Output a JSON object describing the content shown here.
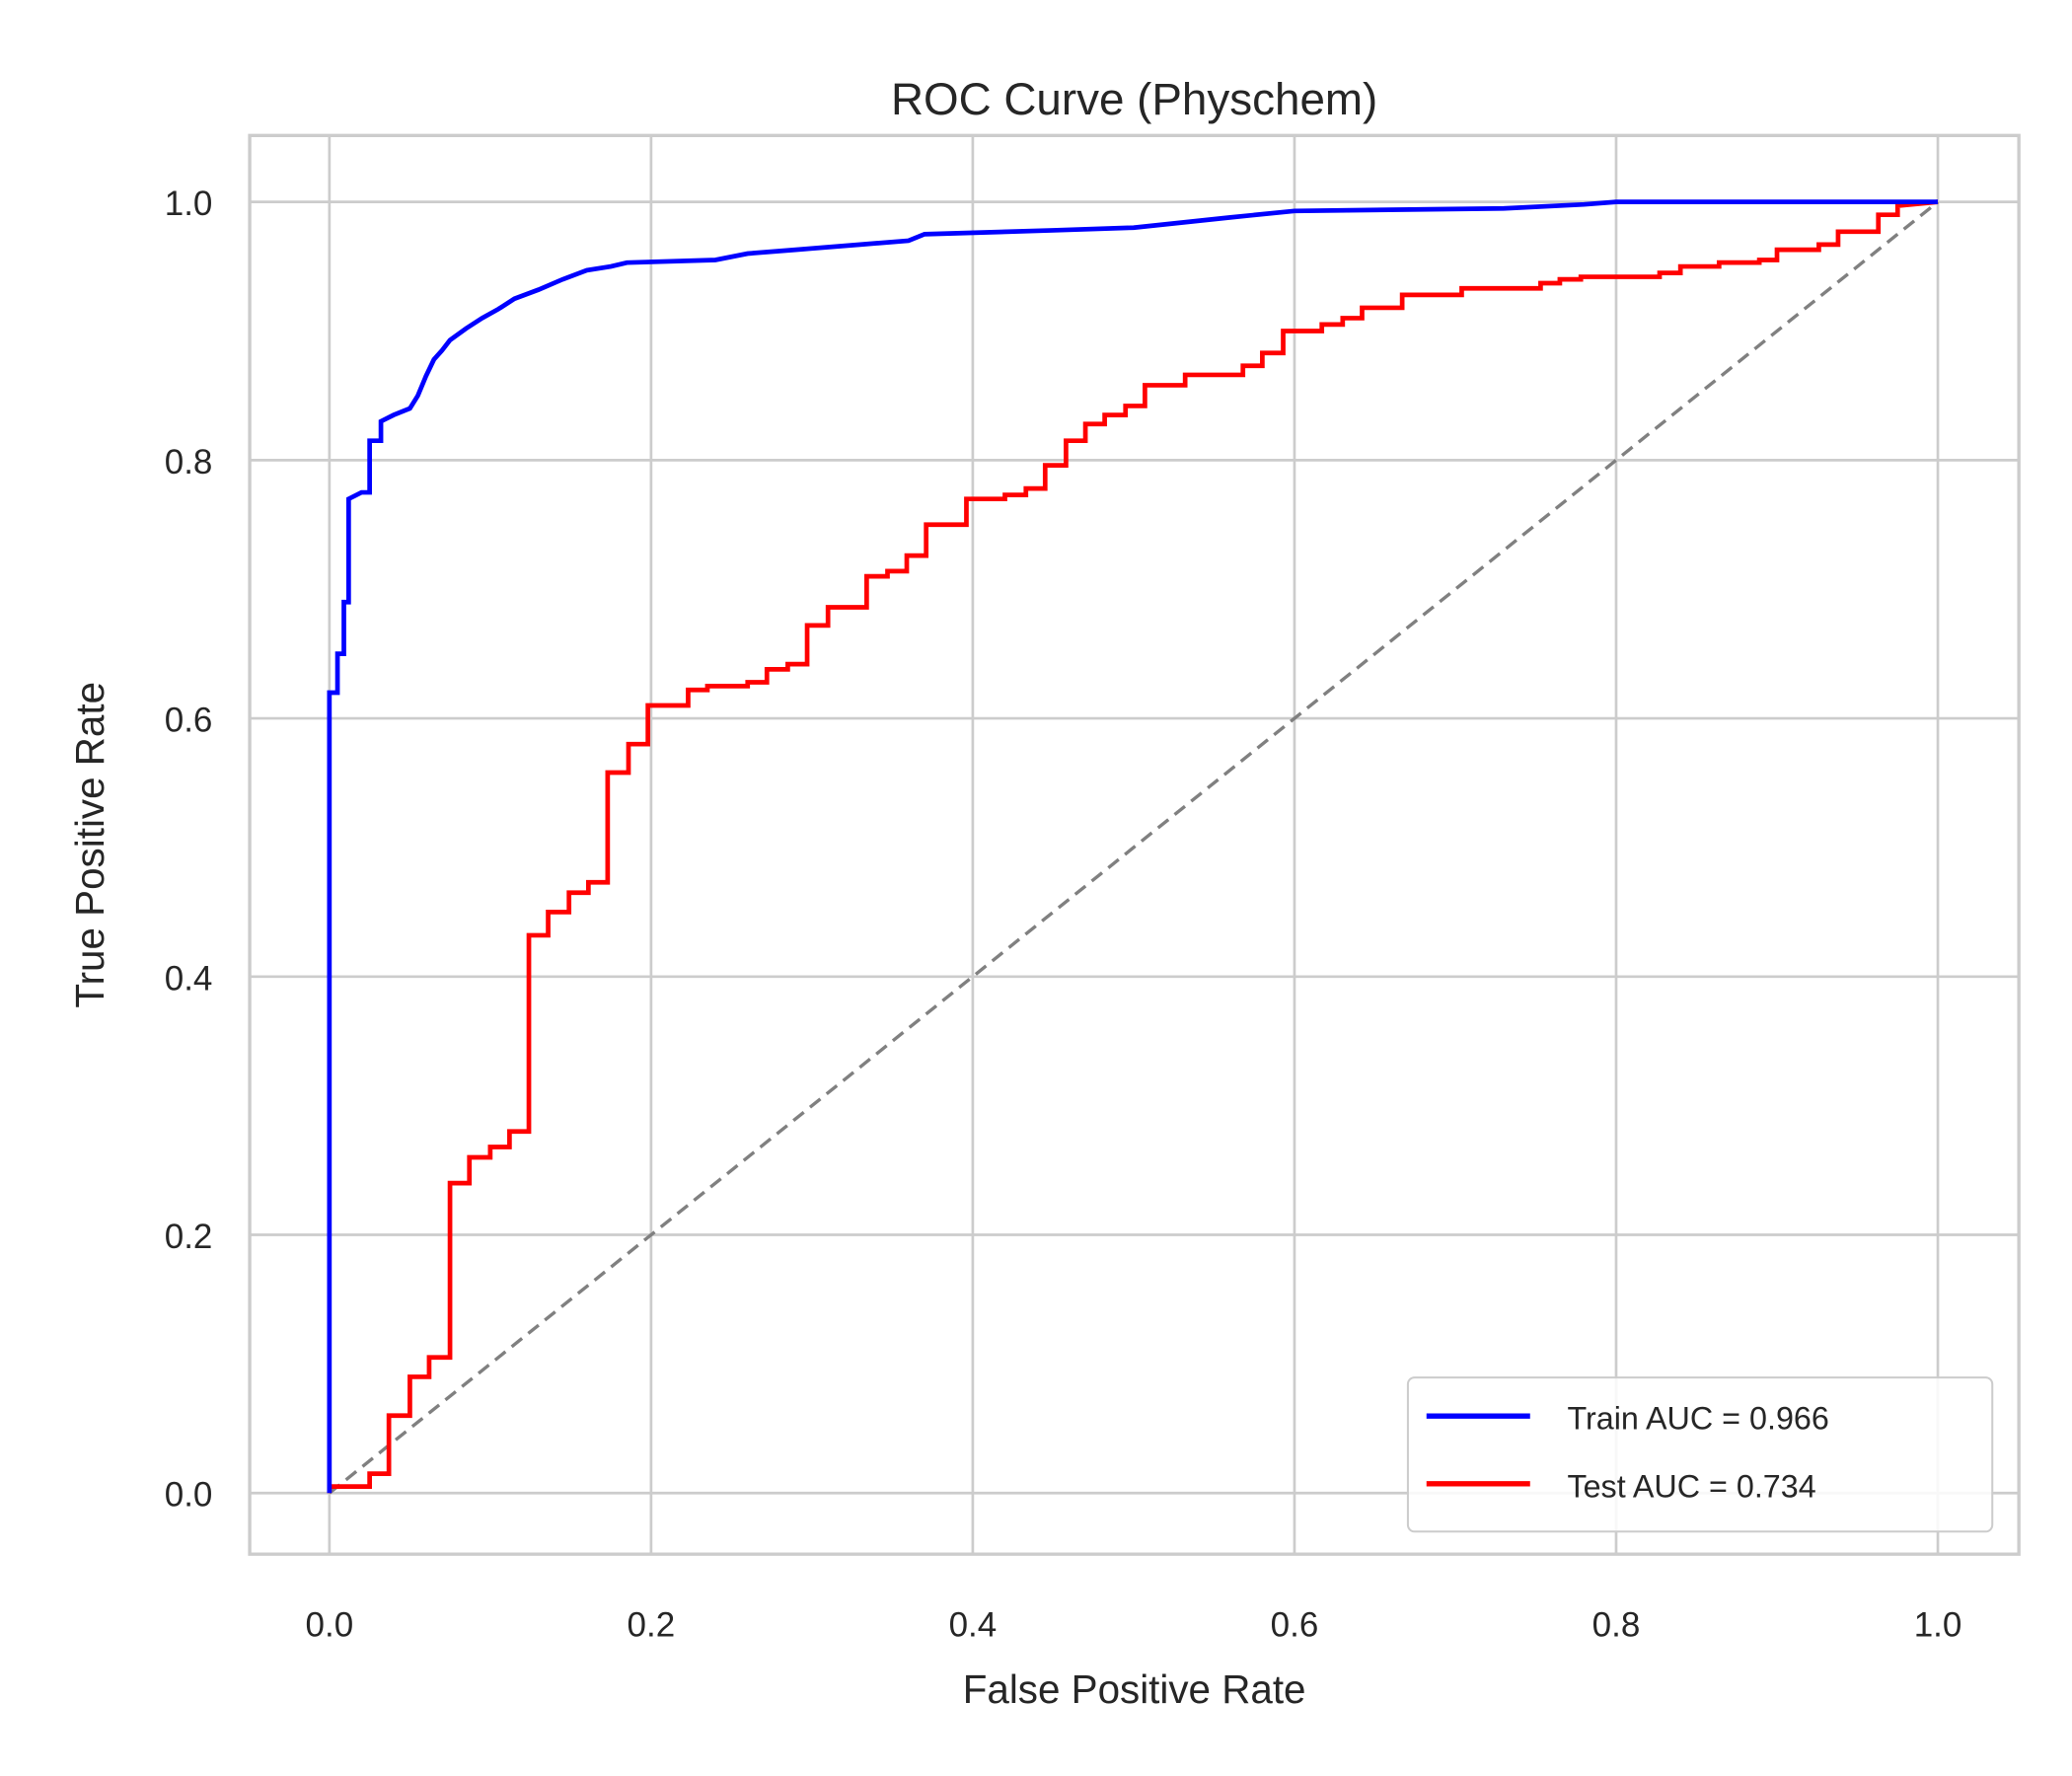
{
  "chart_data": {
    "type": "line",
    "title": "ROC Curve (Physchem)",
    "xlabel": "False Positive Rate",
    "ylabel": "True Positive Rate",
    "xlim": [
      -0.05,
      1.05
    ],
    "ylim": [
      -0.05,
      1.05
    ],
    "xticks": [
      "0.0",
      "0.2",
      "0.4",
      "0.6",
      "0.8",
      "1.0"
    ],
    "yticks": [
      "0.0",
      "0.2",
      "0.4",
      "0.6",
      "0.8",
      "1.0"
    ],
    "grid": true,
    "legend_position": "lower-right",
    "series": [
      {
        "name": "Train AUC = 0.966",
        "color": "#0000ff",
        "x": [
          0,
          0,
          0.005,
          0.005,
          0.009,
          0.009,
          0.012,
          0.012,
          0.02,
          0.025,
          0.025,
          0.032,
          0.032,
          0.04,
          0.05,
          0.055,
          0.06,
          0.065,
          0.07,
          0.075,
          0.085,
          0.095,
          0.105,
          0.115,
          0.13,
          0.145,
          0.16,
          0.175,
          0.185,
          0.24,
          0.26,
          0.29,
          0.33,
          0.36,
          0.37,
          0.45,
          0.5,
          0.56,
          0.6,
          0.73,
          0.78,
          0.8,
          1
        ],
        "y": [
          0,
          0.62,
          0.62,
          0.65,
          0.65,
          0.69,
          0.69,
          0.77,
          0.775,
          0.775,
          0.815,
          0.815,
          0.83,
          0.835,
          0.84,
          0.85,
          0.865,
          0.878,
          0.885,
          0.893,
          0.902,
          0.91,
          0.917,
          0.925,
          0.932,
          0.94,
          0.947,
          0.95,
          0.953,
          0.955,
          0.96,
          0.963,
          0.967,
          0.97,
          0.975,
          0.978,
          0.98,
          0.988,
          0.993,
          0.995,
          0.998,
          1,
          1
        ]
      },
      {
        "name": "Test AUC = 0.734",
        "color": "#ff0000",
        "x": [
          0,
          0,
          0.025,
          0.025,
          0.037,
          0.037,
          0.05,
          0.05,
          0.062,
          0.062,
          0.075,
          0.075,
          0.087,
          0.087,
          0.1,
          0.1,
          0.112,
          0.112,
          0.124,
          0.124,
          0.136,
          0.136,
          0.149,
          0.149,
          0.161,
          0.161,
          0.173,
          0.173,
          0.186,
          0.186,
          0.198,
          0.198,
          0.223,
          0.223,
          0.235,
          0.235,
          0.26,
          0.26,
          0.272,
          0.272,
          0.285,
          0.285,
          0.297,
          0.297,
          0.31,
          0.31,
          0.334,
          0.334,
          0.347,
          0.347,
          0.359,
          0.359,
          0.371,
          0.371,
          0.396,
          0.396,
          0.42,
          0.42,
          0.433,
          0.433,
          0.445,
          0.445,
          0.458,
          0.458,
          0.47,
          0.47,
          0.482,
          0.482,
          0.495,
          0.495,
          0.507,
          0.507,
          0.532,
          0.532,
          0.568,
          0.568,
          0.58,
          0.58,
          0.593,
          0.593,
          0.617,
          0.617,
          0.63,
          0.63,
          0.642,
          0.642,
          0.667,
          0.667,
          0.704,
          0.704,
          0.753,
          0.753,
          0.765,
          0.765,
          0.778,
          0.778,
          0.827,
          0.827,
          0.84,
          0.84,
          0.864,
          0.864,
          0.889,
          0.889,
          0.9,
          0.9,
          0.926,
          0.926,
          0.938,
          0.938,
          0.963,
          0.963,
          0.975,
          0.975,
          1
        ],
        "y": [
          0,
          0.005,
          0.005,
          0.015,
          0.015,
          0.06,
          0.06,
          0.09,
          0.09,
          0.105,
          0.105,
          0.24,
          0.24,
          0.26,
          0.26,
          0.268,
          0.268,
          0.28,
          0.28,
          0.432,
          0.432,
          0.45,
          0.45,
          0.465,
          0.465,
          0.473,
          0.473,
          0.558,
          0.558,
          0.58,
          0.58,
          0.61,
          0.61,
          0.622,
          0.622,
          0.625,
          0.625,
          0.628,
          0.628,
          0.638,
          0.638,
          0.642,
          0.642,
          0.672,
          0.672,
          0.686,
          0.686,
          0.71,
          0.71,
          0.714,
          0.714,
          0.726,
          0.726,
          0.75,
          0.75,
          0.77,
          0.77,
          0.773,
          0.773,
          0.778,
          0.778,
          0.796,
          0.796,
          0.815,
          0.815,
          0.828,
          0.828,
          0.835,
          0.835,
          0.842,
          0.842,
          0.858,
          0.858,
          0.866,
          0.866,
          0.873,
          0.873,
          0.883,
          0.883,
          0.9,
          0.9,
          0.905,
          0.905,
          0.91,
          0.91,
          0.918,
          0.918,
          0.928,
          0.928,
          0.933,
          0.933,
          0.937,
          0.937,
          0.94,
          0.94,
          0.942,
          0.942,
          0.945,
          0.945,
          0.95,
          0.95,
          0.953,
          0.953,
          0.955,
          0.955,
          0.963,
          0.963,
          0.967,
          0.967,
          0.977,
          0.977,
          0.99,
          0.99,
          0.997,
          1
        ]
      },
      {
        "color": "#808080",
        "style": "dashed",
        "x": [
          0,
          1
        ],
        "y": [
          0,
          1
        ]
      }
    ]
  }
}
